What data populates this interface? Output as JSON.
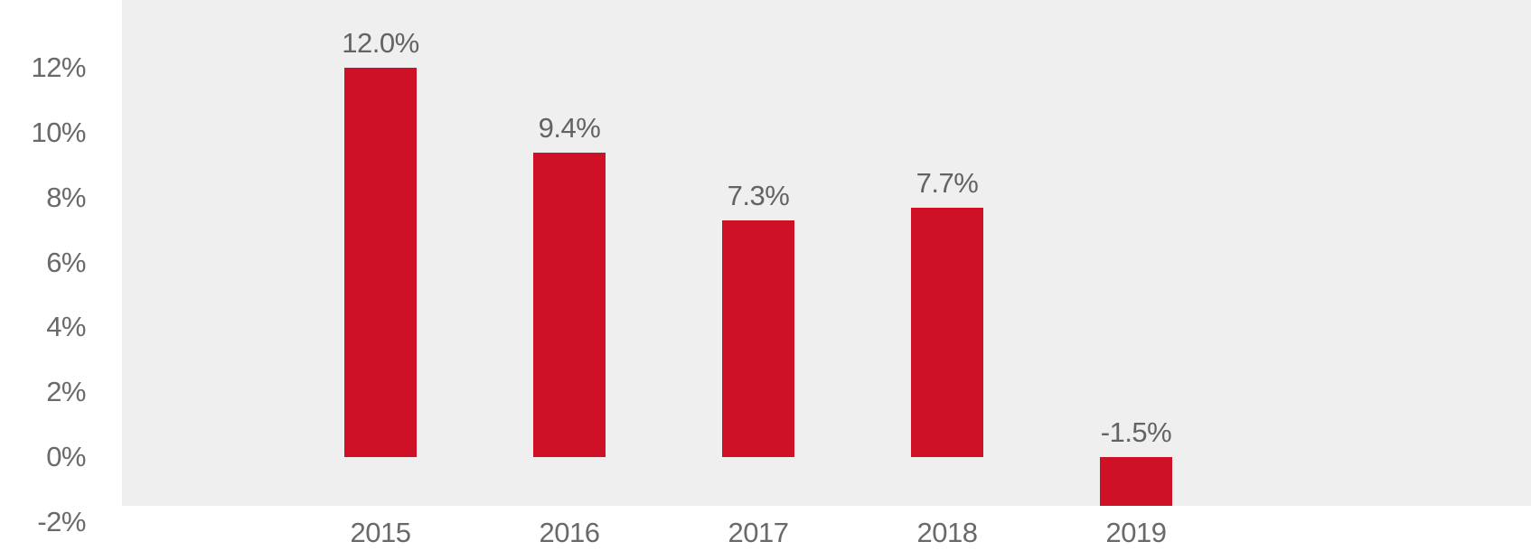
{
  "colors": {
    "page_background": "#ffffff",
    "plot_background": "#efefef",
    "bar": "#ce1126",
    "axis_text": "#696969",
    "value_label_text": "#636363"
  },
  "chart_data": {
    "type": "bar",
    "categories": [
      "2015",
      "2016",
      "2017",
      "2018",
      "2019"
    ],
    "values": [
      12.0,
      9.4,
      7.3,
      7.7,
      -1.5
    ],
    "bar_labels": [
      "12.0%",
      "9.4%",
      "7.3%",
      "7.7%",
      "-1.5%"
    ],
    "series": [
      {
        "name": "annual-percent-value",
        "values": [
          12.0,
          9.4,
          7.3,
          7.7,
          -1.5
        ],
        "color": "#ce1126"
      }
    ],
    "title": "",
    "xlabel": "",
    "ylabel": "",
    "y_axis": {
      "tick_labels": [
        "12%",
        "10%",
        "8%",
        "6%",
        "4%",
        "2%",
        "0%",
        "-2%"
      ],
      "tick_values": [
        12,
        10,
        8,
        6,
        4,
        2,
        0,
        -2
      ],
      "unit": "percent"
    },
    "ylim": [
      -1.5,
      14.1
    ],
    "grid": false,
    "legend": false,
    "data_label_position": "above-bar"
  }
}
